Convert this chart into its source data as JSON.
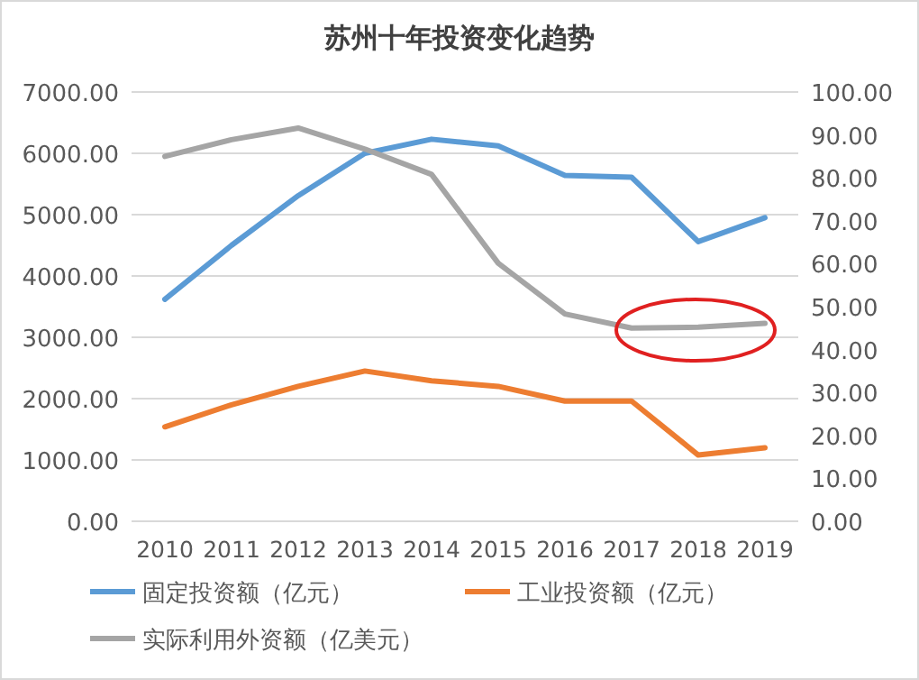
{
  "chart_data": {
    "type": "line",
    "title": "苏州十年投资变化趋势",
    "categories": [
      "2010",
      "2011",
      "2012",
      "2013",
      "2014",
      "2015",
      "2016",
      "2017",
      "2018",
      "2019"
    ],
    "series": [
      {
        "name": "固定投资额（亿元）",
        "color": "#5b9bd5",
        "values": [
          3620,
          4500,
          5310,
          6000,
          6230,
          6120,
          5640,
          5610,
          4560,
          4950
        ]
      },
      {
        "name": "工业投资额（亿元）",
        "color": "#ed7d31",
        "values": [
          1540,
          1900,
          2200,
          2450,
          2290,
          2200,
          1960,
          1960,
          1080,
          1200
        ]
      },
      {
        "name": "实际利用外资额（亿美元）",
        "color": "#a5a5a5",
        "axis": "y2",
        "values": [
          85.0,
          88.9,
          91.6,
          86.7,
          80.8,
          60.1,
          48.3,
          45.0,
          45.2,
          46.1
        ]
      }
    ],
    "ylim": [
      0,
      7000
    ],
    "yticks": [
      {
        "value": 0,
        "label": "0.00"
      },
      {
        "value": 1000,
        "label": "1000.00"
      },
      {
        "value": 2000,
        "label": "2000.00"
      },
      {
        "value": 3000,
        "label": "3000.00"
      },
      {
        "value": 4000,
        "label": "4000.00"
      },
      {
        "value": 5000,
        "label": "5000.00"
      },
      {
        "value": 6000,
        "label": "6000.00"
      },
      {
        "value": 7000,
        "label": "7000.00"
      }
    ],
    "y2lim": [
      0,
      100
    ],
    "y2ticks": [
      {
        "value": 0,
        "label": "0.00"
      },
      {
        "value": 10,
        "label": "10.00"
      },
      {
        "value": 20,
        "label": "20.00"
      },
      {
        "value": 30,
        "label": "30.00"
      },
      {
        "value": 40,
        "label": "40.00"
      },
      {
        "value": 50,
        "label": "50.00"
      },
      {
        "value": 60,
        "label": "60.00"
      },
      {
        "value": 70,
        "label": "70.00"
      },
      {
        "value": 80,
        "label": "80.00"
      },
      {
        "value": 90,
        "label": "90.00"
      },
      {
        "value": 100,
        "label": "100.00"
      }
    ],
    "grid": "y",
    "legend": "bottom",
    "marker": "none",
    "line_style": "solid"
  }
}
